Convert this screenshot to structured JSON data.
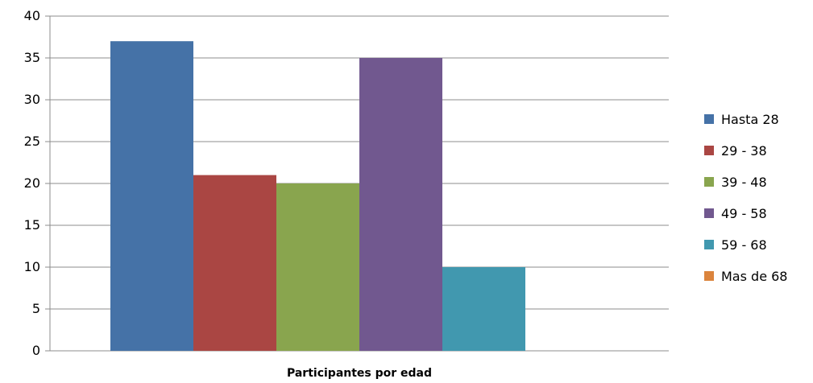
{
  "chart_data": {
    "type": "bar",
    "title": "",
    "xlabel": "Participantes por edad",
    "ylabel": "",
    "ylim": [
      0,
      40
    ],
    "yticks": [
      0,
      5,
      10,
      15,
      20,
      25,
      30,
      35,
      40
    ],
    "grid": true,
    "legend_position": "right",
    "categories": [
      "Participantes por edad"
    ],
    "series": [
      {
        "name": "Hasta 28",
        "values": [
          37
        ],
        "color": "#4572A7"
      },
      {
        "name": "29 - 38",
        "values": [
          21
        ],
        "color": "#AA4643"
      },
      {
        "name": "39 - 48",
        "values": [
          20
        ],
        "color": "#89A54E"
      },
      {
        "name": "49 - 58",
        "values": [
          35
        ],
        "color": "#71588F"
      },
      {
        "name": "59 - 68",
        "values": [
          10
        ],
        "color": "#4198AF"
      },
      {
        "name": "Mas de 68",
        "values": [
          0
        ],
        "color": "#DB843D"
      }
    ]
  }
}
